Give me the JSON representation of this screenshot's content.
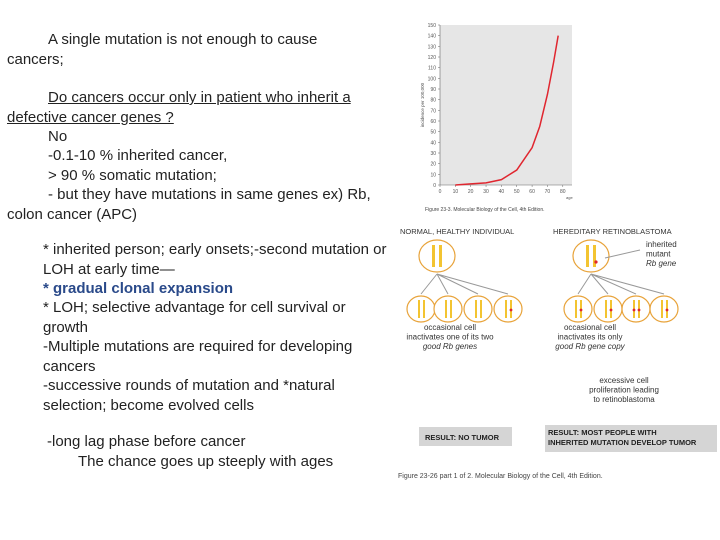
{
  "slide": {
    "p1": "A single mutation is not enough to cause cancers;",
    "p2": "Do cancers occur only in patient who inherit a defective cancer genes ?",
    "no": "No",
    "l1": "-0.1-10 % inherited cancer,",
    "l2": "> 90 % somatic mutation;",
    "l3": "- but they have mutations in same genes ex) Rb, colon cancer (APC)",
    "b1": "* inherited person; early onsets;-second mutation or LOH at early time—",
    "b2": "* gradual clonal expansion",
    "b3": "* LOH; selective advantage for cell survival or growth",
    "b4": "-Multiple mutations are required for developing cancers",
    "b5": "-successive rounds of mutation and *natural selection; become evolved cells",
    "c1": "-long lag phase before cancer",
    "c2": "The chance goes up steeply with ages"
  },
  "chart_data": {
    "type": "line",
    "y_label": "incidence per 100,000",
    "x_label": "age",
    "caption": "Figure 23-3. Molecular Biology of the Cell, 4th Edition.",
    "x": [
      10,
      20,
      30,
      40,
      50,
      60,
      65,
      70,
      74,
      77
    ],
    "values": [
      0,
      1,
      2,
      5,
      14,
      35,
      55,
      85,
      115,
      140
    ],
    "color": "#e0262f",
    "xlim": [
      0,
      86
    ],
    "xticks": [
      0,
      10,
      20,
      30,
      40,
      50,
      60,
      70,
      80
    ],
    "ylim": [
      0,
      150
    ],
    "yticks": [
      0,
      10,
      20,
      30,
      40,
      50,
      60,
      70,
      80,
      90,
      100,
      110,
      120,
      130,
      140,
      150
    ]
  },
  "diagram": {
    "left_title": "NORMAL, HEALTHY INDIVIDUAL",
    "right_title": "HEREDITARY RETINOBLASTOMA",
    "labels": [
      [
        "inherited",
        "mutant",
        "Rb gene"
      ],
      [
        "occasional cell",
        "inactivates one of its two",
        "good Rb genes"
      ],
      [
        "occasional cell",
        "inactivates its only",
        "good Rb gene copy"
      ],
      [
        "excessive cell",
        "proliferation leading",
        "to retinoblastoma"
      ]
    ],
    "result_left": [
      "RESULT: NO TUMOR"
    ],
    "result_right": [
      "RESULT: MOST PEOPLE WITH",
      "INHERITED MUTATION DEVELOP TUMOR"
    ],
    "caption": "Figure 23-26 part 1 of 2. Molecular Biology of the Cell, 4th Edition."
  }
}
